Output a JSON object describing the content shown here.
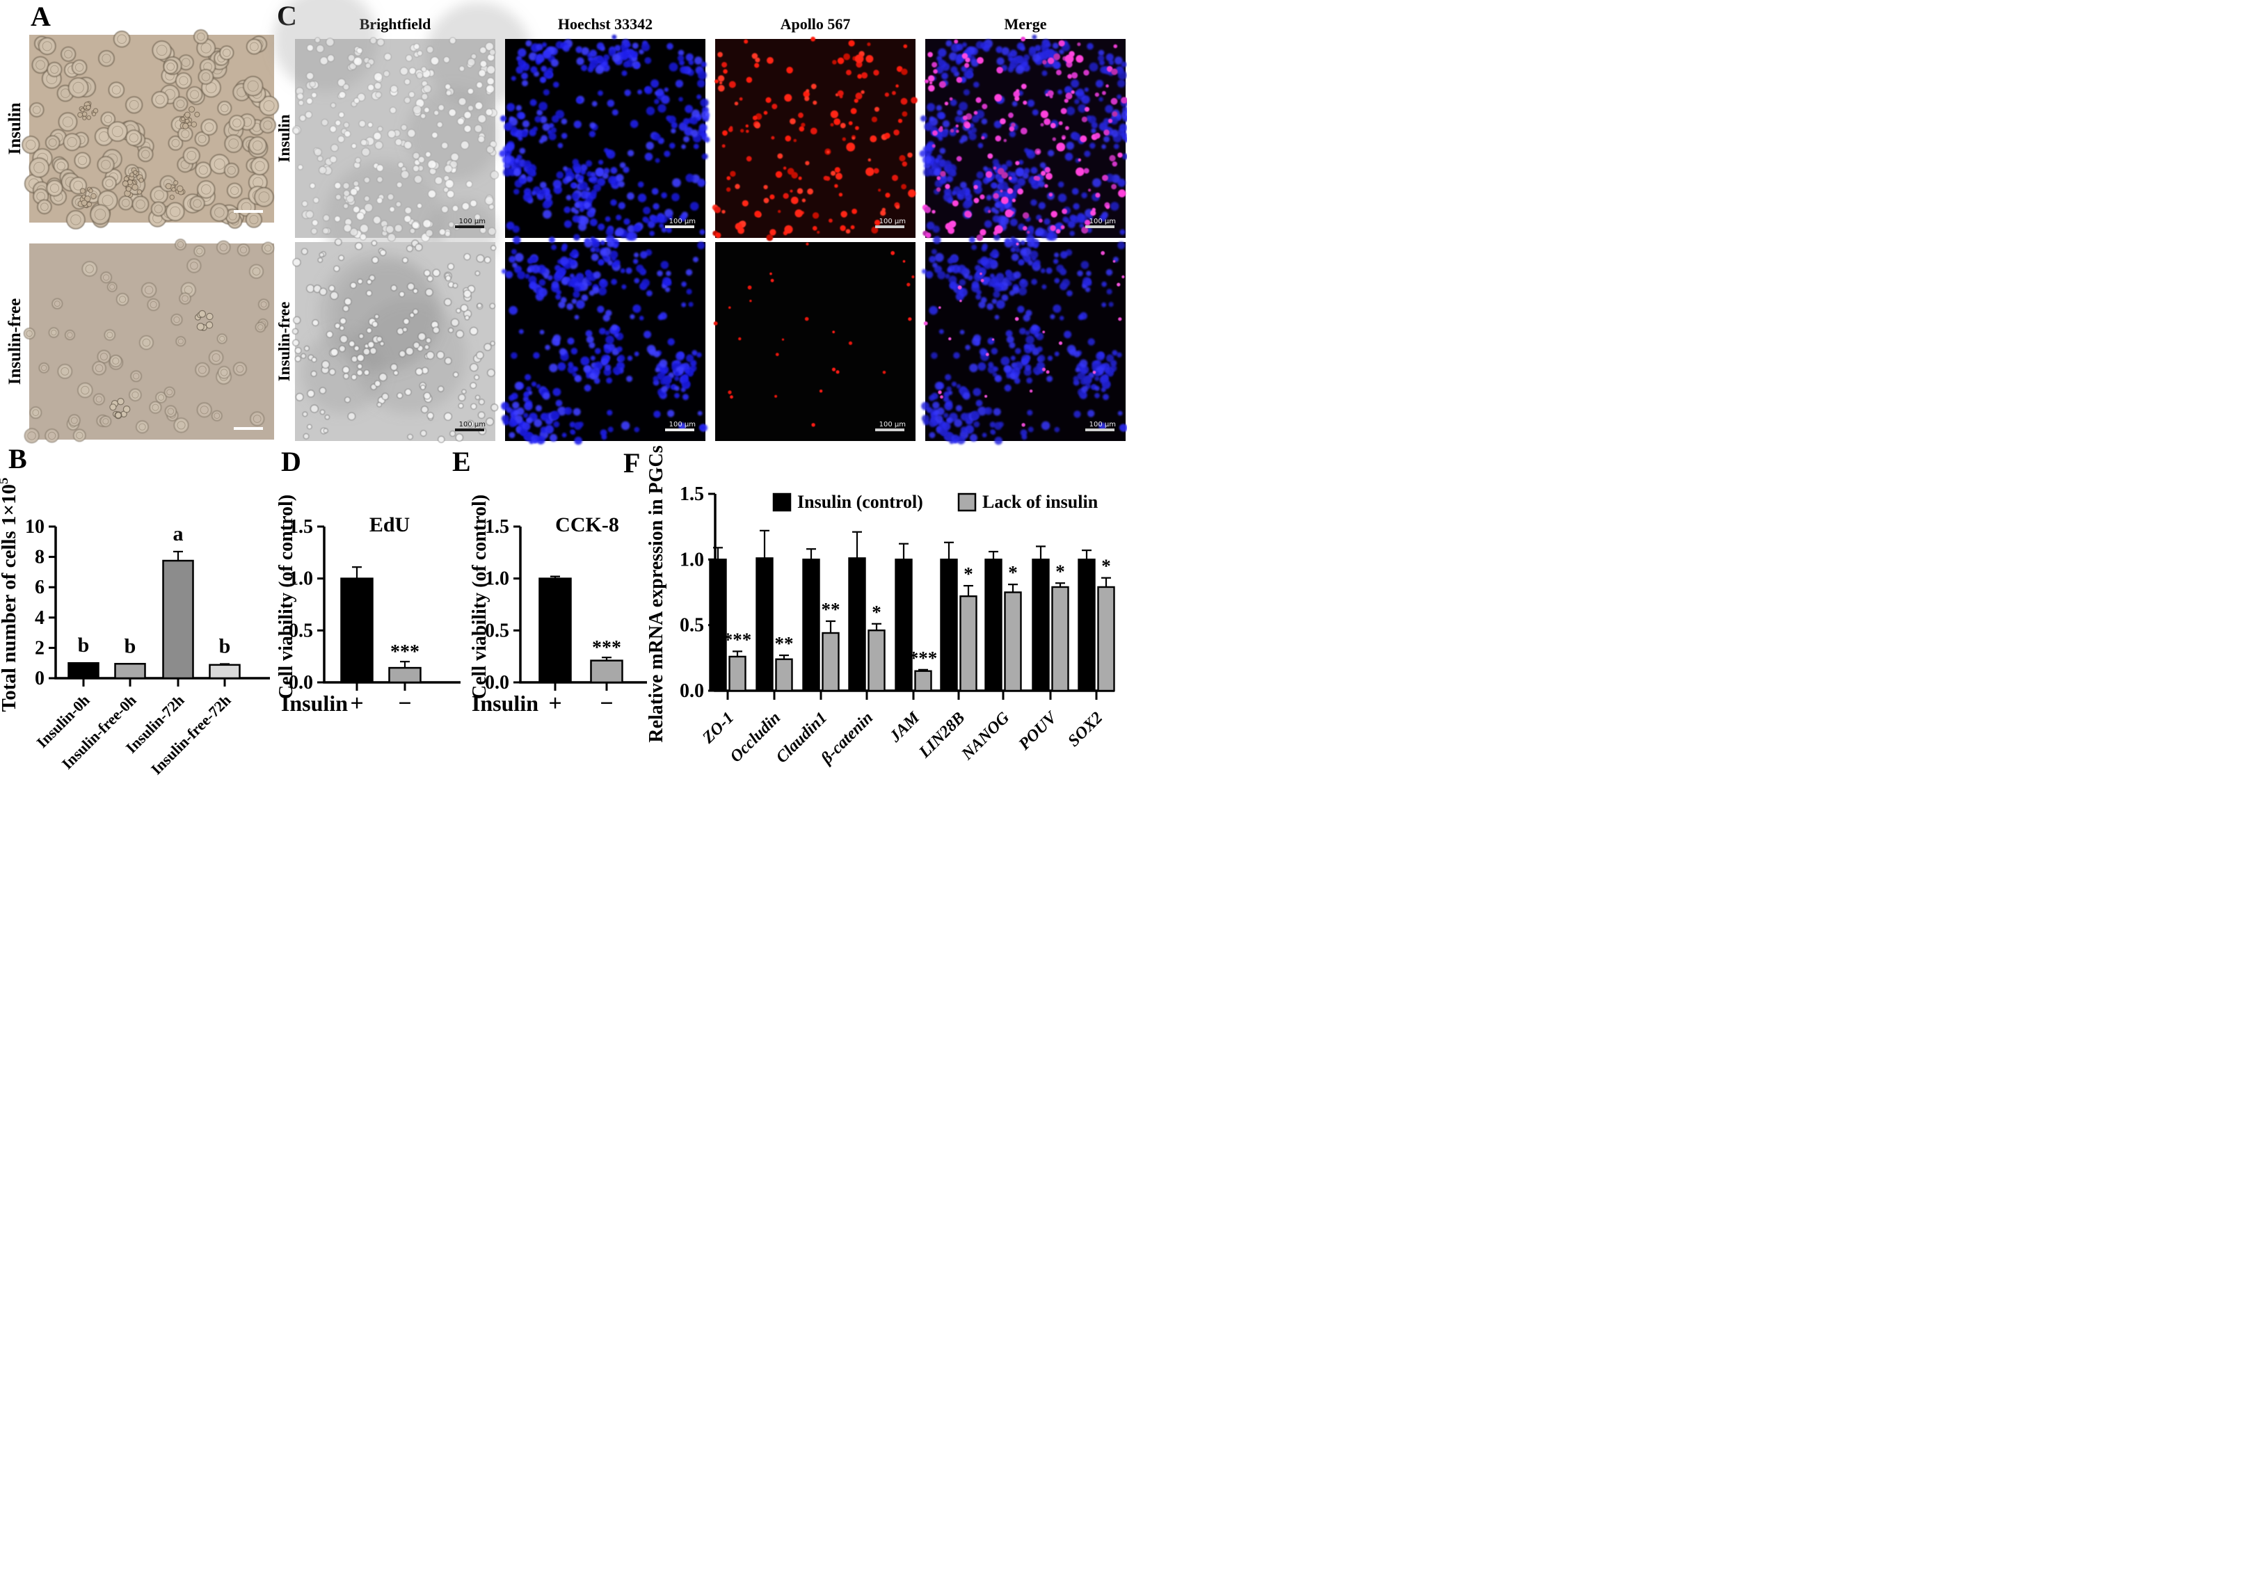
{
  "figure": {
    "panels": {
      "a": {
        "label": "A",
        "rows": [
          {
            "label": "Insulin"
          },
          {
            "label": "Insulin-free"
          }
        ]
      },
      "b": {
        "label": "B"
      },
      "c": {
        "label": "C",
        "column_headers": [
          "Brightfield",
          "Hoechst 33342",
          "Apollo 567",
          "Merge"
        ],
        "rows": [
          {
            "label": "Insulin"
          },
          {
            "label": "Insulin-free"
          }
        ],
        "scale_bar_label": "100 μm"
      },
      "d": {
        "label": "D"
      },
      "e": {
        "label": "E"
      },
      "f": {
        "label": "F"
      }
    }
  },
  "chart_data": [
    {
      "panel": "B",
      "type": "bar",
      "ylabel": "Total number of cells 1×10",
      "ylabel_sup": "5",
      "ylim": [
        0,
        10
      ],
      "ytick_labels": [
        "0",
        "2",
        "4",
        "6",
        "8",
        "10"
      ],
      "categories": [
        "Insulin-0h",
        "Insulin-free-0h",
        "Insulin-72h",
        "Insulin-free-72h"
      ],
      "values": [
        1.0,
        0.95,
        7.75,
        0.88
      ],
      "errors": [
        0,
        0,
        0.6,
        0.06
      ],
      "bar_labels": [
        "b",
        "b",
        "a",
        "b"
      ],
      "bar_colors": [
        "#000000",
        "#a8a8a8",
        "#8c8c8c",
        "#d9d9d9"
      ]
    },
    {
      "panel": "D",
      "type": "bar",
      "title": "EdU",
      "ylabel": "Cell viability (of control)",
      "ylim": [
        0,
        1.5
      ],
      "ytick_labels": [
        "0.0",
        "0.5",
        "1.0",
        "1.5"
      ],
      "x_prefix": "Insulin",
      "categories": [
        "+",
        "−"
      ],
      "values": [
        1.0,
        0.14
      ],
      "errors": [
        0.11,
        0.06
      ],
      "bar_labels": [
        "",
        "***"
      ],
      "bar_colors": [
        "#000000",
        "#a8a8a8"
      ]
    },
    {
      "panel": "E",
      "type": "bar",
      "title": "CCK-8",
      "ylabel": "Cell viability (of control)",
      "ylim": [
        0,
        1.5
      ],
      "ytick_labels": [
        "0.0",
        "0.5",
        "1.0",
        "1.5"
      ],
      "x_prefix": "Insulin",
      "categories": [
        "+",
        "−"
      ],
      "values": [
        1.0,
        0.21
      ],
      "errors": [
        0.02,
        0.03
      ],
      "bar_labels": [
        "",
        "***"
      ],
      "bar_colors": [
        "#000000",
        "#a8a8a8"
      ]
    },
    {
      "panel": "F",
      "type": "grouped_bar",
      "ylabel": "Relative mRNA expression in PGCs",
      "ylim": [
        0,
        1.5
      ],
      "ytick_labels": [
        "0.0",
        "0.5",
        "1.0",
        "1.5"
      ],
      "categories": [
        "ZO-1",
        "Occludin",
        "Claudin1",
        "β-catenin",
        "JAM",
        "LIN28B",
        "NANOG",
        "POUV",
        "SOX2"
      ],
      "series": [
        {
          "name": "Insulin (control)",
          "color": "#000000",
          "values": [
            1.0,
            1.01,
            1.0,
            1.01,
            1.0,
            1.0,
            1.0,
            1.0,
            1.0
          ],
          "errors": [
            0.09,
            0.21,
            0.08,
            0.2,
            0.12,
            0.13,
            0.06,
            0.1,
            0.07
          ]
        },
        {
          "name": "Lack of insulin",
          "color": "#ababab",
          "values": [
            0.26,
            0.24,
            0.44,
            0.46,
            0.15,
            0.72,
            0.75,
            0.79,
            0.79
          ],
          "errors": [
            0.04,
            0.03,
            0.09,
            0.05,
            0.01,
            0.08,
            0.06,
            0.03,
            0.07
          ],
          "sig": [
            "***",
            "**",
            "**",
            "*",
            "***",
            "*",
            "*",
            "*",
            "*"
          ]
        }
      ],
      "legend": true
    }
  ]
}
